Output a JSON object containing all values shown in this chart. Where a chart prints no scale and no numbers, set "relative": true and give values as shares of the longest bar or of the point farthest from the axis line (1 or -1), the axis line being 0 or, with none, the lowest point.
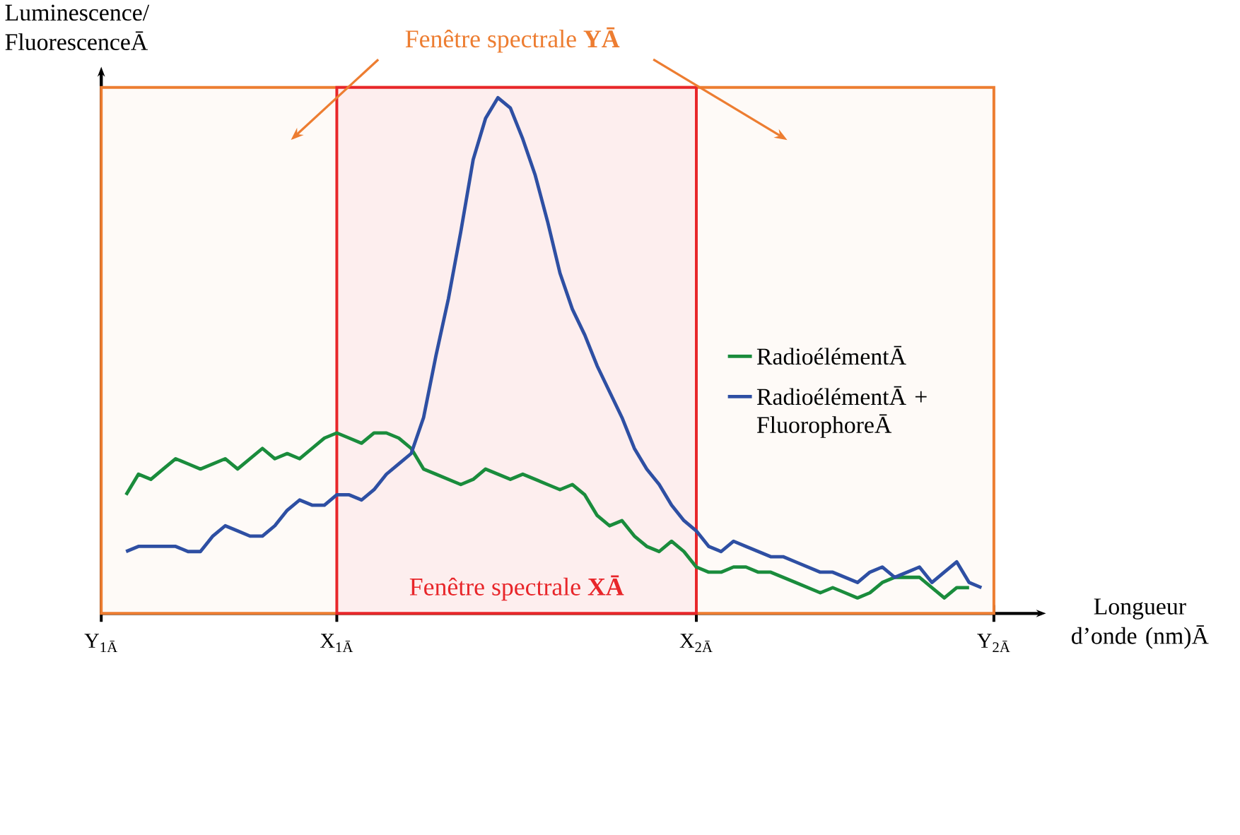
{
  "chart_data": {
    "type": "line",
    "relative": true,
    "ylabel": "Luminescence/ FluorescenceĀ",
    "xlabel": "Longueur d’onde (nm)Ā",
    "categories": [
      "Y$_{1Ā}$",
      null,
      null,
      null,
      null,
      null,
      null,
      null,
      null,
      null,
      null,
      null,
      null,
      null,
      null,
      null,
      null,
      null,
      null,
      "X$_{1Ā}$",
      null,
      null,
      null,
      null,
      null,
      null,
      null,
      null,
      null,
      null,
      null,
      null,
      null,
      null,
      null,
      null,
      null,
      null,
      null,
      null,
      null,
      null,
      null,
      null,
      null,
      null,
      null,
      null,
      "X$_{2Ā}$",
      null,
      null,
      null,
      null,
      null,
      null,
      null,
      null,
      null,
      null,
      null,
      null,
      null,
      null,
      null,
      null,
      null,
      null,
      null,
      null,
      null,
      null,
      null,
      "Y$_{2Ā}$"
    ],
    "bands": [
      {
        "axis": "x",
        "from": "Y$_{1Ā}$",
        "to": "Y$_{2Ā}$",
        "label": "Fenêtre spectrale **YĀ**",
        "color": "#ed7d31"
      },
      {
        "axis": "x",
        "from": "X$_{1Ā}$",
        "to": "X$_{2Ā}$",
        "label": "Fenêtre spectrale **XĀ**",
        "color": "#e8262a"
      }
    ],
    "series": [
      {
        "name": "RadioélémentĀ",
        "color": "#1a8c3c",
        "values": [
          null,
          null,
          0.23,
          0.27,
          0.26,
          0.28,
          0.3,
          0.29,
          0.28,
          0.29,
          0.3,
          0.28,
          0.3,
          0.32,
          0.3,
          0.31,
          0.3,
          0.32,
          0.34,
          0.35,
          0.34,
          0.33,
          0.35,
          0.35,
          0.34,
          0.32,
          0.28,
          0.27,
          0.26,
          0.25,
          0.26,
          0.28,
          0.27,
          0.26,
          0.27,
          0.26,
          0.25,
          0.24,
          0.25,
          0.23,
          0.19,
          0.17,
          0.18,
          0.15,
          0.13,
          0.12,
          0.14,
          0.12,
          0.09,
          0.08,
          0.08,
          0.09,
          0.09,
          0.08,
          0.08,
          0.07,
          0.06,
          0.05,
          0.04,
          0.05,
          0.04,
          0.03,
          0.04,
          0.06,
          0.07,
          0.07,
          0.07,
          0.05,
          0.03,
          0.05,
          0.05,
          null,
          null
        ]
      },
      {
        "name": "RadioélémentĀ + FluorophoreĀ",
        "color": "#2e4fa3",
        "values": [
          null,
          null,
          0.12,
          0.13,
          0.13,
          0.13,
          0.13,
          0.12,
          0.12,
          0.15,
          0.17,
          0.16,
          0.15,
          0.15,
          0.17,
          0.2,
          0.22,
          0.21,
          0.21,
          0.23,
          0.23,
          0.22,
          0.24,
          0.27,
          0.29,
          0.31,
          0.38,
          0.5,
          0.61,
          0.74,
          0.88,
          0.96,
          1.0,
          0.98,
          0.92,
          0.85,
          0.76,
          0.66,
          0.59,
          0.54,
          0.48,
          0.43,
          0.38,
          0.32,
          0.28,
          0.25,
          0.21,
          0.18,
          0.16,
          0.13,
          0.12,
          0.14,
          0.13,
          0.12,
          0.11,
          0.11,
          0.1,
          0.09,
          0.08,
          0.08,
          0.07,
          0.06,
          0.08,
          0.09,
          0.07,
          0.08,
          0.09,
          0.06,
          0.08,
          0.1,
          0.06,
          0.05,
          null
        ]
      }
    ],
    "legend": "right"
  }
}
